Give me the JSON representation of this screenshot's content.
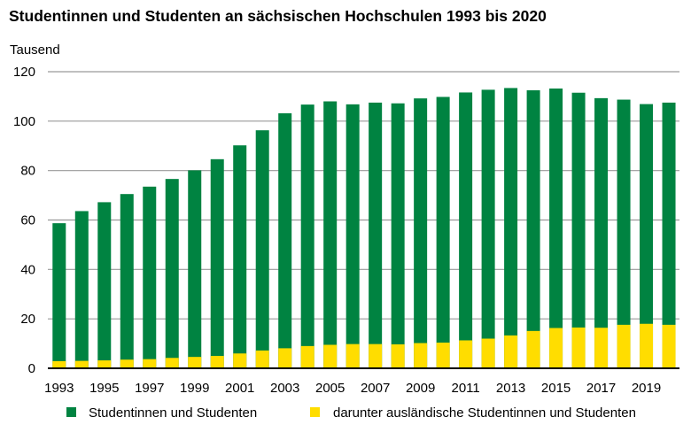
{
  "chart_data": {
    "type": "bar",
    "stacking": "overlay",
    "title": "Studentinnen und Studenten an sächsischen Hochschulen 1993 bis 2020",
    "ylabel": "Tausend",
    "xlabel": "",
    "ylim": [
      0,
      120
    ],
    "yticks": [
      0,
      20,
      40,
      60,
      80,
      100,
      120
    ],
    "grid": true,
    "legend_position": "bottom",
    "categories": [
      "1993",
      "1994",
      "1995",
      "1996",
      "1997",
      "1998",
      "1999",
      "2000",
      "2001",
      "2002",
      "2003",
      "2004",
      "2005",
      "2006",
      "2007",
      "2008",
      "2009",
      "2010",
      "2011",
      "2012",
      "2013",
      "2014",
      "2015",
      "2016",
      "2017",
      "2018",
      "2019",
      "2020"
    ],
    "xtick_labels": [
      "1993",
      "1995",
      "1997",
      "1999",
      "2001",
      "2003",
      "2005",
      "2007",
      "2009",
      "2011",
      "2013",
      "2015",
      "2017",
      "2019"
    ],
    "series": [
      {
        "name": "Studentinnen und Studenten",
        "color": "#008341",
        "values": [
          58.7,
          63.6,
          67.2,
          70.5,
          73.5,
          76.6,
          80.1,
          84.6,
          90.2,
          96.3,
          103.2,
          106.7,
          108.0,
          106.8,
          107.5,
          107.2,
          109.2,
          109.8,
          111.6,
          112.7,
          113.4,
          112.5,
          113.2,
          111.5,
          109.3,
          108.7,
          106.9,
          107.5
        ]
      },
      {
        "name": "darunter ausländische Studentinnen und Studenten",
        "color": "#FFDD00",
        "values": [
          2.9,
          3.0,
          3.2,
          3.5,
          3.7,
          4.2,
          4.6,
          5.0,
          6.0,
          7.2,
          8.1,
          9.0,
          9.5,
          9.8,
          9.8,
          9.7,
          10.2,
          10.4,
          11.3,
          12.0,
          13.3,
          15.1,
          16.3,
          16.5,
          16.4,
          17.6,
          18.0,
          17.6
        ]
      }
    ]
  }
}
